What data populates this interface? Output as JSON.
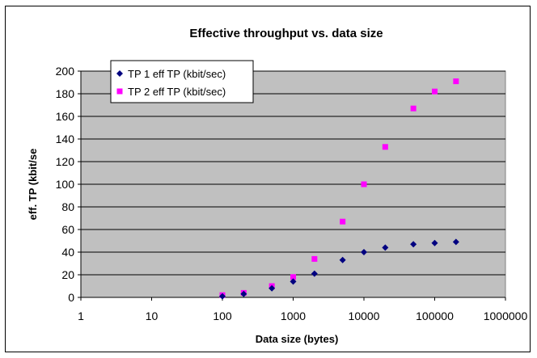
{
  "chart_data": {
    "type": "scatter",
    "title": "Effective throughput vs. data size",
    "xlabel": "Data size (bytes)",
    "ylabel": "eff. TP (kbit/se",
    "x_scale": "log",
    "xlim": [
      1,
      1000000
    ],
    "ylim": [
      0,
      200
    ],
    "x_ticks": [
      "1",
      "10",
      "100",
      "1000",
      "10000",
      "100000",
      "1000000"
    ],
    "y_ticks": [
      "0",
      "20",
      "40",
      "60",
      "80",
      "100",
      "120",
      "140",
      "160",
      "180",
      "200"
    ],
    "grid": "horizontal",
    "legend_position": "top-left",
    "plot_background": "#c0c0c0",
    "series": [
      {
        "name": "TP 1 eff TP (kbit/sec)",
        "marker": "diamond",
        "color": "#000080",
        "x": [
          100,
          200,
          500,
          1000,
          2000,
          5000,
          10000,
          20000,
          50000,
          100000,
          200000
        ],
        "y": [
          1,
          3,
          8,
          14,
          21,
          33,
          40,
          44,
          47,
          48,
          49
        ]
      },
      {
        "name": "TP 2 eff TP (kbit/sec)",
        "marker": "square",
        "color": "#ff00ff",
        "x": [
          100,
          200,
          500,
          1000,
          2000,
          5000,
          10000,
          20000,
          50000,
          100000,
          200000
        ],
        "y": [
          2,
          4,
          10,
          18,
          34,
          67,
          100,
          133,
          167,
          182,
          191
        ]
      }
    ]
  }
}
